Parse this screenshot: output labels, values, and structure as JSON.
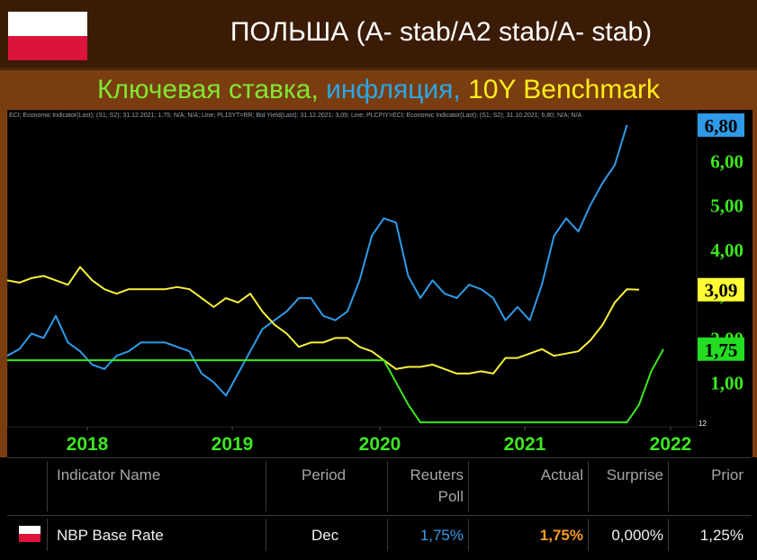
{
  "header": {
    "title": "ПОЛЬША (A- stab/A2 stab/A- stab)",
    "subtitle_parts": [
      "Ключевая ставка, ",
      "инфляция, ",
      "10Y Benchmark"
    ]
  },
  "chart_data": {
    "type": "line",
    "legend_text": "ECI; Economic Indicator(Last); (S1; S2); 31.12.2021; 1,75; N/A; N/A; Line; PL10YT=RR; Bid Yield(Last); 31.12.2021; 3,09; Line; PLCPIY=ECI; Economic Indicator(Last); (S1; S2); 31.10.2021; 6,80; N/A; N/A",
    "x_ticks": [
      "2018",
      "2019",
      "2020",
      "2021",
      "2022"
    ],
    "y_ticks": [
      "1,00",
      "2,00",
      "3,00",
      "4,00",
      "5,00",
      "6,00"
    ],
    "y_range": [
      0.0,
      6.9
    ],
    "axis_corner_label": "12",
    "series": [
      {
        "key": "inflation",
        "color": "#2f9be8",
        "last_label": "6,80",
        "last_label_bg": "#2f9be8",
        "last_label_color": "#000000",
        "values": [
          1.6,
          1.75,
          2.1,
          2.0,
          2.5,
          1.9,
          1.7,
          1.4,
          1.3,
          1.6,
          1.7,
          1.9,
          1.9,
          1.9,
          1.8,
          1.7,
          1.2,
          1.0,
          0.7,
          1.2,
          1.7,
          2.2,
          2.4,
          2.6,
          2.9,
          2.9,
          2.5,
          2.4,
          2.6,
          3.3,
          4.3,
          4.7,
          4.6,
          3.4,
          2.9,
          3.3,
          3.0,
          2.9,
          3.2,
          3.1,
          2.9,
          2.4,
          2.7,
          2.4,
          3.2,
          4.3,
          4.7,
          4.4,
          5.0,
          5.5,
          5.9,
          6.8
        ]
      },
      {
        "key": "bond_10y",
        "color": "#f7f03b",
        "last_label": "3,09",
        "last_label_bg": "#ffff33",
        "last_label_color": "#000000",
        "values": [
          3.3,
          3.25,
          3.35,
          3.4,
          3.3,
          3.2,
          3.6,
          3.3,
          3.1,
          3.0,
          3.1,
          3.1,
          3.1,
          3.1,
          3.15,
          3.1,
          2.9,
          2.7,
          2.9,
          2.8,
          3.0,
          2.6,
          2.3,
          2.1,
          1.8,
          1.9,
          1.9,
          2.0,
          2.0,
          1.8,
          1.7,
          1.5,
          1.3,
          1.35,
          1.35,
          1.4,
          1.3,
          1.2,
          1.2,
          1.25,
          1.2,
          1.55,
          1.55,
          1.65,
          1.75,
          1.6,
          1.65,
          1.7,
          1.95,
          2.3,
          2.8,
          3.1,
          3.09
        ]
      },
      {
        "key": "key_rate",
        "color": "#3ce81e",
        "last_label": "1,75",
        "last_label_bg": "#22dd22",
        "last_label_color": "#000000",
        "values": [
          1.5,
          1.5,
          1.5,
          1.5,
          1.5,
          1.5,
          1.5,
          1.5,
          1.5,
          1.5,
          1.5,
          1.5,
          1.5,
          1.5,
          1.5,
          1.5,
          1.5,
          1.5,
          1.5,
          1.5,
          1.5,
          1.5,
          1.5,
          1.5,
          1.5,
          1.5,
          1.5,
          1.5,
          1.5,
          1.5,
          1.5,
          1.5,
          1.0,
          0.5,
          0.1,
          0.1,
          0.1,
          0.1,
          0.1,
          0.1,
          0.1,
          0.1,
          0.1,
          0.1,
          0.1,
          0.1,
          0.1,
          0.1,
          0.1,
          0.1,
          0.1,
          0.1,
          0.5,
          1.25,
          1.75
        ]
      }
    ]
  },
  "table": {
    "headers": {
      "indicator": "Indicator Name",
      "period": "Period",
      "poll_line1": "Reuters",
      "poll_line2": "Poll",
      "actual": "Actual",
      "surprise": "Surprise",
      "prior": "Prior"
    },
    "row": {
      "indicator": "NBP Base Rate",
      "period": "Dec",
      "poll": "1,75%",
      "actual": "1,75%",
      "surprise": "0,000%",
      "prior": "1,25%"
    },
    "colors": {
      "poll": "#3a9be8",
      "actual": "#f79a22"
    }
  }
}
